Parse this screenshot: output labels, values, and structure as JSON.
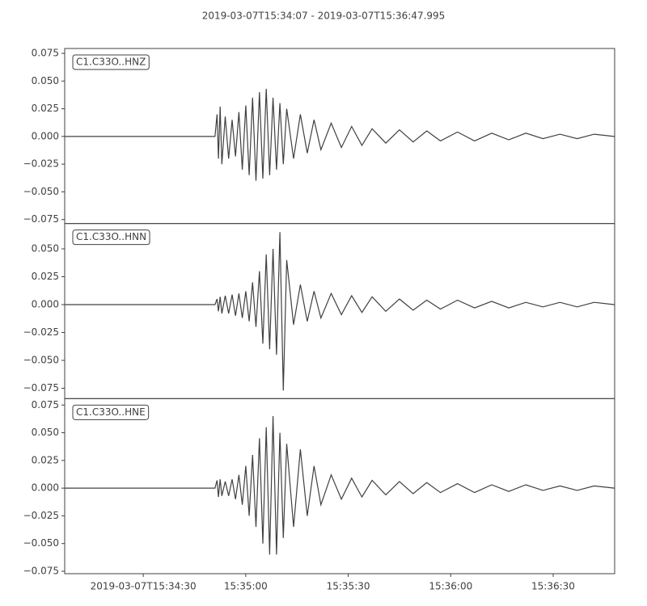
{
  "chart_data": [
    {
      "type": "line",
      "title": "2019-03-07T15:34:07  -  2019-03-07T15:36:47.995",
      "label": "C1.C33O..HNZ",
      "color": "#404040",
      "x": [
        0,
        44,
        44.6,
        45,
        45.5,
        46,
        47,
        48,
        49,
        50,
        51,
        52,
        53,
        54,
        55,
        56,
        57,
        58,
        59,
        60,
        61,
        62,
        63,
        64,
        65,
        67,
        69,
        71,
        73,
        75,
        78,
        81,
        84,
        87,
        90,
        94,
        98,
        102,
        106,
        110,
        115,
        120,
        125,
        130,
        135,
        140,
        145,
        150,
        155,
        160.9
      ],
      "values": [
        0,
        0,
        0.02,
        -0.02,
        0.027,
        -0.025,
        0.018,
        -0.02,
        0.015,
        -0.018,
        0.022,
        -0.03,
        0.028,
        -0.035,
        0.035,
        -0.04,
        0.04,
        -0.038,
        0.043,
        -0.035,
        0.035,
        -0.03,
        0.03,
        -0.025,
        0.025,
        -0.02,
        0.02,
        -0.015,
        0.015,
        -0.012,
        0.012,
        -0.01,
        0.009,
        -0.008,
        0.007,
        -0.006,
        0.006,
        -0.005,
        0.005,
        -0.004,
        0.004,
        -0.004,
        0.003,
        -0.003,
        0.003,
        -0.002,
        0.002,
        -0.002,
        0.002,
        0
      ],
      "xlim": [
        0,
        160.995
      ],
      "ylim": [
        -0.0786,
        0.0794
      ],
      "yticks": [
        {
          "value": -0.075,
          "label": "−0.075"
        },
        {
          "value": -0.05,
          "label": "−0.050"
        },
        {
          "value": -0.025,
          "label": "−0.025"
        },
        {
          "value": 0,
          "label": "0.000"
        },
        0.025,
        {
          "value": 0.05,
          "label": "0.050"
        },
        0.075
      ]
    },
    {
      "type": "line",
      "label": "C1.C33O..HNN",
      "color": "#404040",
      "x": [
        0,
        44,
        44.6,
        45,
        45.5,
        46,
        47,
        48,
        49,
        50,
        51,
        52,
        53,
        54,
        55,
        56,
        57,
        58,
        59,
        60,
        61,
        62,
        63,
        64,
        65,
        67,
        69,
        71,
        73,
        75,
        78,
        81,
        84,
        87,
        90,
        94,
        98,
        102,
        106,
        110,
        115,
        120,
        125,
        130,
        135,
        140,
        145,
        150,
        155,
        160.9
      ],
      "values": [
        0,
        0,
        0.005,
        -0.006,
        0.007,
        -0.008,
        0.008,
        -0.008,
        0.009,
        -0.01,
        0.01,
        -0.012,
        0.012,
        -0.015,
        0.02,
        -0.02,
        0.03,
        -0.035,
        0.045,
        -0.04,
        0.05,
        -0.045,
        0.065,
        -0.077,
        0.04,
        -0.018,
        0.018,
        -0.015,
        0.012,
        -0.012,
        0.01,
        -0.009,
        0.008,
        -0.007,
        0.007,
        -0.006,
        0.005,
        -0.005,
        0.004,
        -0.004,
        0.004,
        -0.003,
        0.003,
        -0.003,
        0.002,
        -0.002,
        0.002,
        -0.002,
        0.002,
        0
      ],
      "xlim": [
        0,
        160.995
      ],
      "ylim": [
        -0.0843,
        0.0727
      ],
      "yticks": [
        {
          "value": -0.075,
          "label": "−0.075"
        },
        {
          "value": -0.05,
          "label": "−0.050"
        },
        {
          "value": -0.025,
          "label": "−0.025"
        },
        {
          "value": 0,
          "label": "0.000"
        },
        0.025,
        {
          "value": 0.05,
          "label": "0.050"
        }
      ]
    },
    {
      "type": "line",
      "label": "C1.C33O..HNE",
      "color": "#404040",
      "x": [
        0,
        44,
        44.6,
        45,
        45.5,
        46,
        47,
        48,
        49,
        50,
        51,
        52,
        53,
        54,
        55,
        56,
        57,
        58,
        59,
        60,
        61,
        62,
        63,
        64,
        65,
        67,
        69,
        71,
        73,
        75,
        78,
        81,
        84,
        87,
        90,
        94,
        98,
        102,
        106,
        110,
        115,
        120,
        125,
        130,
        135,
        140,
        145,
        150,
        155,
        160.9
      ],
      "values": [
        0,
        0,
        0.007,
        -0.008,
        0.008,
        -0.007,
        0.006,
        -0.007,
        0.008,
        -0.01,
        0.012,
        -0.015,
        0.02,
        -0.025,
        0.03,
        -0.035,
        0.045,
        -0.05,
        0.055,
        -0.06,
        0.065,
        -0.06,
        0.05,
        -0.045,
        0.04,
        -0.035,
        0.035,
        -0.025,
        0.02,
        -0.015,
        0.012,
        -0.01,
        0.009,
        -0.008,
        0.007,
        -0.006,
        0.006,
        -0.005,
        0.005,
        -0.004,
        0.004,
        -0.004,
        0.003,
        -0.003,
        0.003,
        -0.002,
        0.002,
        -0.002,
        0.002,
        0
      ],
      "xlim": [
        0,
        160.995
      ],
      "ylim": [
        -0.0772,
        0.0808
      ],
      "yticks": [
        {
          "value": -0.075,
          "label": "−0.075"
        },
        {
          "value": -0.05,
          "label": "−0.050"
        },
        {
          "value": -0.025,
          "label": "−0.025"
        },
        {
          "value": 0,
          "label": "0.000"
        },
        0.025,
        {
          "value": 0.05,
          "label": "0.050"
        },
        0.075
      ],
      "xticks": [
        {
          "value": 23,
          "label": "2019-03-07T15:34:30"
        },
        {
          "value": 53,
          "label": "15:35:00"
        },
        {
          "value": 83,
          "label": "15:35:30"
        },
        {
          "value": 113,
          "label": "15:36:00"
        },
        {
          "value": 143,
          "label": "15:36:30"
        }
      ]
    }
  ]
}
